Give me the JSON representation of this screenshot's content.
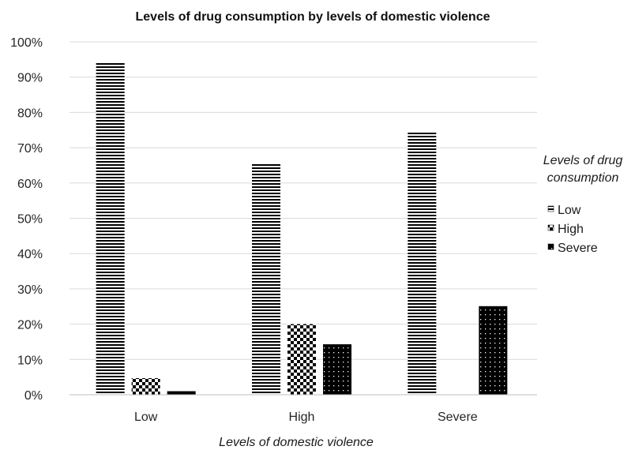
{
  "chart_data": {
    "type": "bar",
    "title": "Levels of drug consumption by levels of domestic violence",
    "xlabel": "Levels of domestic violence",
    "ylabel": "",
    "ylim": [
      0,
      100
    ],
    "yticks": [
      "0%",
      "10%",
      "20%",
      "30%",
      "40%",
      "50%",
      "60%",
      "70%",
      "80%",
      "90%",
      "100%"
    ],
    "categories": [
      "Low",
      "High",
      "Severe"
    ],
    "legend_title": [
      "Levels of drug",
      "consumption"
    ],
    "legend_position": "right",
    "grid": true,
    "series": [
      {
        "name": "Low",
        "values": [
          94.3,
          65.4,
          74.7
        ],
        "pattern": "horizontal-stripes"
      },
      {
        "name": "High",
        "values": [
          4.7,
          20.0,
          0
        ],
        "pattern": "checkerboard"
      },
      {
        "name": "Severe",
        "values": [
          1.0,
          14.3,
          25.1
        ],
        "pattern": "dots"
      }
    ]
  }
}
